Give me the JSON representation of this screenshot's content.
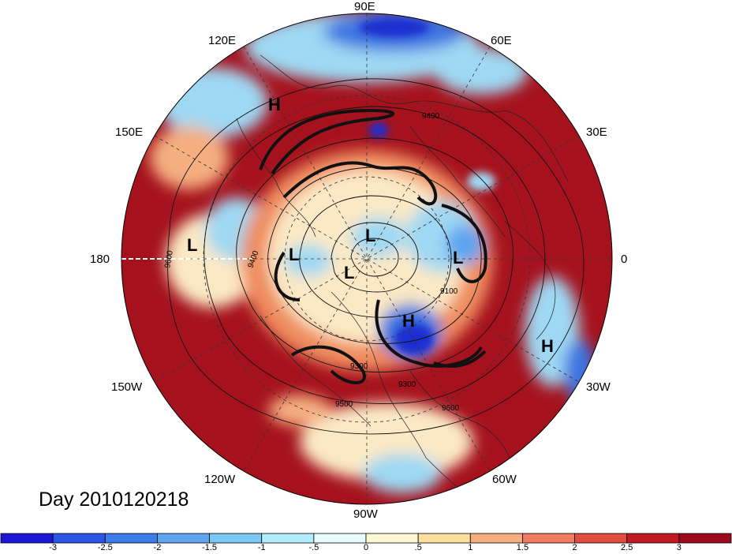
{
  "title": "Day 2010120218",
  "longitude_labels": {
    "e90": "90E",
    "e120": "120E",
    "e60": "60E",
    "e150": "150E",
    "e30": "30E",
    "w180": "180",
    "zero": "0",
    "w150": "150W",
    "w30": "30W",
    "w120": "120W",
    "w60": "60W",
    "w90": "90W"
  },
  "pressure_centers": [
    {
      "label": "H"
    },
    {
      "label": "L"
    },
    {
      "label": "L"
    },
    {
      "label": "L"
    },
    {
      "label": "L"
    },
    {
      "label": "L"
    },
    {
      "label": "H"
    },
    {
      "label": "H"
    }
  ],
  "contour_labels": [
    "9100",
    "9300",
    "9400",
    "9500",
    "9600",
    "9400",
    "9300",
    "9600"
  ],
  "colorbar": {
    "ticks": [
      "-3",
      "-2.5",
      "-2",
      "-1.5",
      "-1",
      "-.5",
      "0",
      ".5",
      "1",
      "1.5",
      "2",
      "2.5",
      "3"
    ],
    "colors": [
      "#1b17d4",
      "#2c55e6",
      "#3d7ce9",
      "#5fa4ef",
      "#7cc8f5",
      "#b3ecfa",
      "#e8fbfd",
      "#fdf7d6",
      "#fbdf9f",
      "#f4ae80",
      "#ef7c60",
      "#e34c40",
      "#c21a22",
      "#9b0a1d"
    ]
  },
  "colors": {
    "deep_red": "#a5121d",
    "red": "#d22f2a",
    "orange": "#ef8c5e",
    "cream": "#fbe9c5",
    "light_blue": "#9fd8f3",
    "blue": "#3c74e0",
    "deep_blue": "#1c2ed0"
  }
}
